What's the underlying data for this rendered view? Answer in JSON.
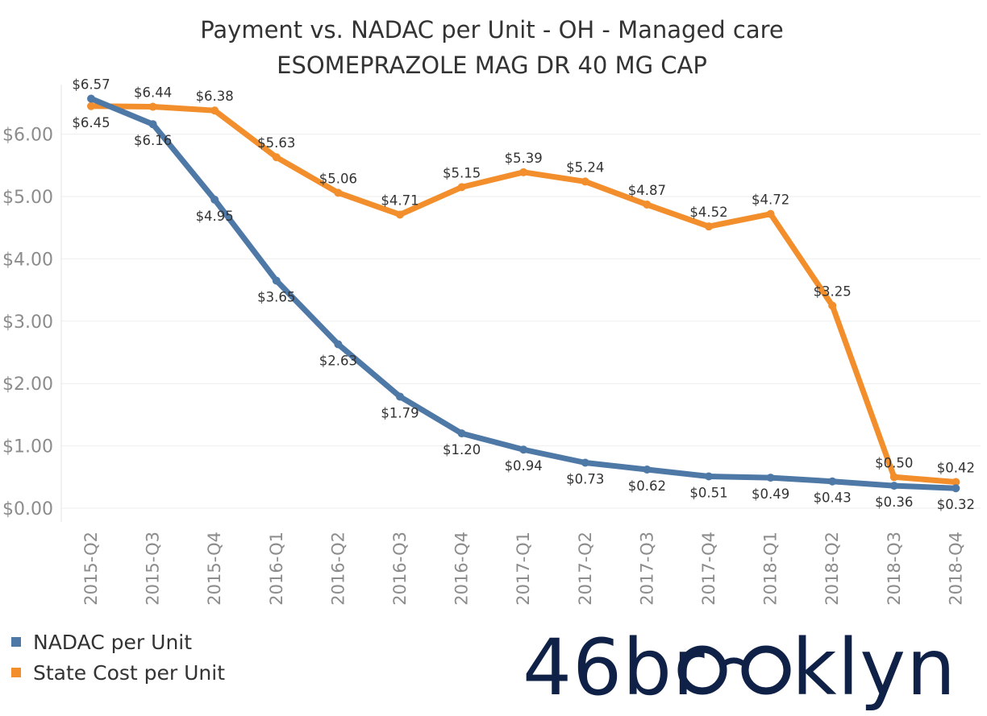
{
  "chart_data": {
    "type": "line",
    "title": "Payment vs. NADAC per Unit - OH - Managed care",
    "subtitle": "ESOMEPRAZOLE MAG DR 40 MG CAP",
    "xlabel": "",
    "ylabel": "",
    "ylim": [
      0,
      6.9
    ],
    "yticks": [
      "$0.00",
      "$1.00",
      "$2.00",
      "$3.00",
      "$4.00",
      "$5.00",
      "$6.00"
    ],
    "ytick_values": [
      0,
      1,
      2,
      3,
      4,
      5,
      6
    ],
    "grid": true,
    "legend_position": "bottom-left",
    "categories": [
      "2015-Q2",
      "2015-Q3",
      "2015-Q4",
      "2016-Q1",
      "2016-Q2",
      "2016-Q3",
      "2016-Q4",
      "2017-Q1",
      "2017-Q2",
      "2017-Q3",
      "2017-Q4",
      "2018-Q1",
      "2018-Q2",
      "2018-Q3",
      "2018-Q4"
    ],
    "series": [
      {
        "name": "NADAC per Unit",
        "color": "#4e79a7",
        "values": [
          6.57,
          6.16,
          4.95,
          3.65,
          2.63,
          1.79,
          1.2,
          0.94,
          0.73,
          0.62,
          0.51,
          0.49,
          0.43,
          0.36,
          0.32
        ],
        "labels": [
          "$6.57",
          "$6.16",
          "$4.95",
          "$3.65",
          "$2.63",
          "$1.79",
          "$1.20",
          "$0.94",
          "$0.73",
          "$0.62",
          "$0.51",
          "$0.49",
          "$0.43",
          "$0.36",
          "$0.32"
        ]
      },
      {
        "name": "State Cost per Unit",
        "color": "#f28e2b",
        "values": [
          6.45,
          6.44,
          6.38,
          5.63,
          5.06,
          4.71,
          5.15,
          5.39,
          5.24,
          4.87,
          4.52,
          4.72,
          3.25,
          0.5,
          0.42
        ],
        "labels": [
          "$6.45",
          "$6.44",
          "$6.38",
          "$5.63",
          "$5.06",
          "$4.71",
          "$5.15",
          "$5.39",
          "$5.24",
          "$4.87",
          "$4.52",
          "$4.72",
          "$3.25",
          "$0.50",
          "$0.42"
        ]
      }
    ]
  },
  "brand": {
    "prefix": "46br",
    "suffix": "klyn",
    "full": "46brooklyn"
  }
}
